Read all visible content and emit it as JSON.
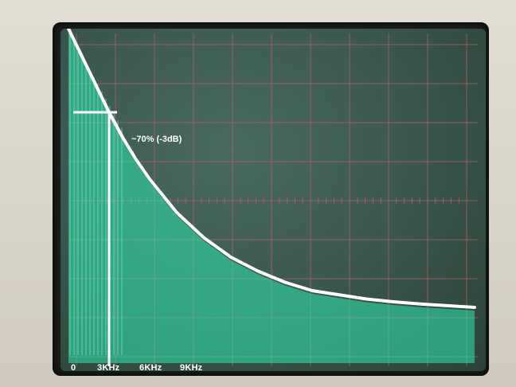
{
  "chart_data": {
    "type": "line",
    "title": "",
    "xlabel": "",
    "ylabel": "",
    "x_tick_labels": [
      "0",
      "3KHz",
      "6KHz",
      "9KHz"
    ],
    "x_tick_values": [
      0,
      3,
      6,
      9
    ],
    "x_unit": "KHz",
    "xlim": [
      0,
      30
    ],
    "ylim": [
      0,
      100
    ],
    "grid": true,
    "annotation": {
      "text": "~70% (-3dB)",
      "x": 3,
      "y": 70
    },
    "series": [
      {
        "color": "#ffffff",
        "x": [
          0,
          1,
          2,
          3,
          4,
          5,
          6,
          8,
          10,
          12,
          14,
          16,
          18,
          20,
          22,
          24,
          26,
          28,
          30
        ],
        "y": [
          100,
          90,
          80,
          70,
          61,
          53,
          46,
          34,
          25,
          18,
          13,
          9,
          6,
          4.5,
          3,
          2,
          1.2,
          0.6,
          0
        ]
      }
    ]
  },
  "colors": {
    "trace": "#2ee8b0",
    "grid": "#b0606a",
    "screen": "#3c5a50"
  }
}
